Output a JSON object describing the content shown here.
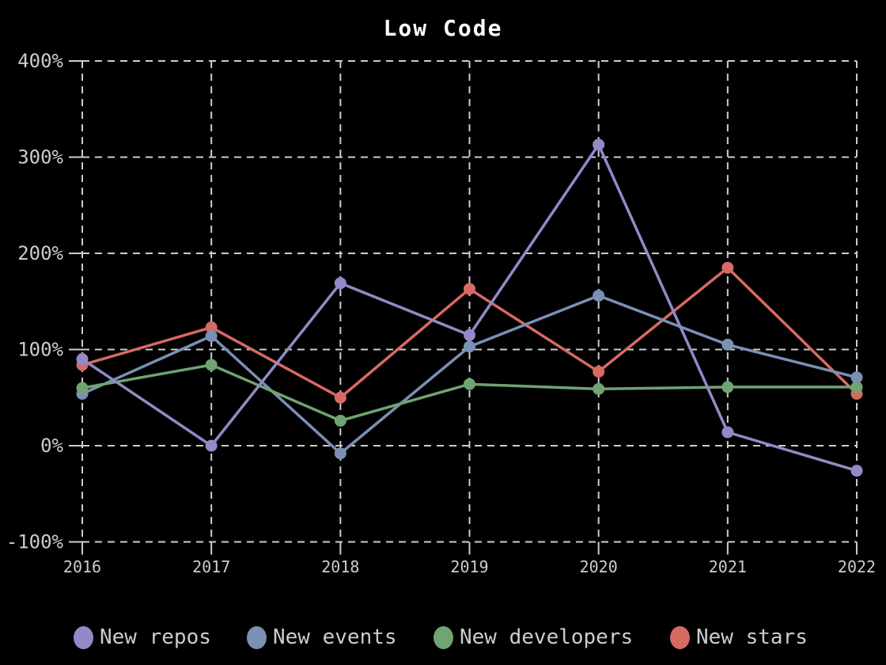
{
  "chart_data": {
    "type": "line",
    "title": "Low Code",
    "x": [
      "2016",
      "2017",
      "2018",
      "2019",
      "2020",
      "2021",
      "2022"
    ],
    "xlabel": "",
    "ylabel": "",
    "unit": "%",
    "ylim": [
      -100,
      400
    ],
    "y_ticks": [
      {
        "label": "400%",
        "value": 400
      },
      {
        "label": "300%",
        "value": 300
      },
      {
        "label": "200%",
        "value": 200
      },
      {
        "label": "100%",
        "value": 100
      },
      {
        "label": "0%",
        "value": 0
      },
      {
        "label": "-100%",
        "value": -100
      }
    ],
    "grid": "dashed",
    "legend_position": "bottom",
    "series": [
      {
        "name": "New repos",
        "color": "#9389c8",
        "values": [
          90,
          0,
          169,
          115,
          313,
          14,
          -26
        ]
      },
      {
        "name": "New events",
        "color": "#7a90b5",
        "values": [
          54,
          114,
          -8,
          103,
          156,
          105,
          71
        ]
      },
      {
        "name": "New developers",
        "color": "#70a471",
        "values": [
          60,
          84,
          26,
          64,
          59,
          61,
          61
        ]
      },
      {
        "name": "New stars",
        "color": "#d76a65",
        "values": [
          84,
          123,
          50,
          163,
          77,
          185,
          54
        ]
      }
    ],
    "draw_order": [
      3,
      1,
      2,
      0
    ],
    "colors": {
      "background": "#000000",
      "grid": "#cccccc",
      "tick_label": "#cccccc",
      "title": "#ffffff"
    }
  }
}
